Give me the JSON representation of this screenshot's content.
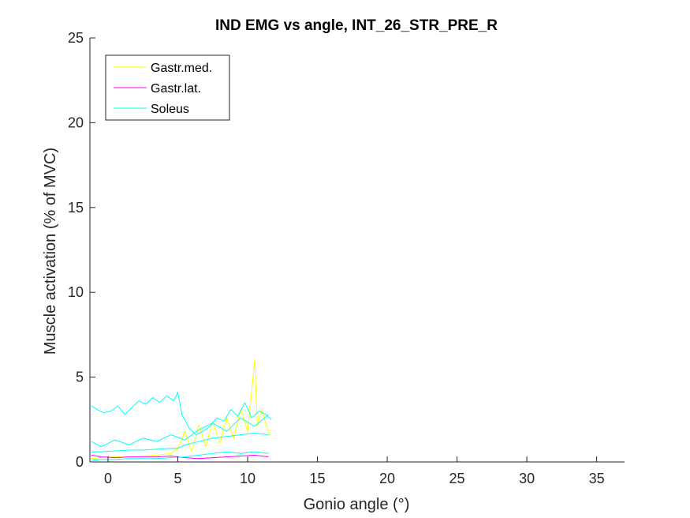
{
  "chart_data": {
    "type": "line",
    "title": "IND EMG vs angle, INT_26_STR_PRE_R",
    "xlabel": "Gonio angle (°)",
    "ylabel": "Muscle activation (% of MVC)",
    "xlim": [
      -1.3,
      37
    ],
    "ylim": [
      0,
      25
    ],
    "xticks": [
      0,
      5,
      10,
      15,
      20,
      25,
      30,
      35
    ],
    "yticks": [
      0,
      5,
      10,
      15,
      20,
      25
    ],
    "grid": false,
    "legend": {
      "placement": "top-left"
    },
    "series": [
      {
        "name": "Gastr.med.",
        "color": "#ffff00",
        "x": [
          -1.2,
          -0.5,
          0.5,
          1.5,
          2.5,
          3.5,
          4.5,
          5.0,
          5.5,
          6.0,
          6.5,
          7.0,
          7.5,
          8.0,
          8.5,
          9.0,
          9.5,
          10.0,
          10.3,
          10.5,
          10.7,
          11.0,
          11.3,
          11.6
        ],
        "y": [
          0.2,
          0.25,
          0.3,
          0.3,
          0.35,
          0.4,
          0.5,
          0.8,
          1.8,
          0.6,
          2.2,
          0.9,
          2.4,
          1.1,
          2.6,
          1.4,
          3.1,
          1.8,
          4.2,
          6.0,
          2.1,
          3.1,
          2.3,
          1.5
        ]
      },
      {
        "name": "Gastr.lat.",
        "color": "#ff00ff",
        "x": [
          -1.2,
          -0.5,
          0.5,
          1.5,
          2.5,
          3.5,
          4.5,
          5.5,
          6.5,
          7.5,
          8.5,
          9.5,
          10.5,
          11.5
        ],
        "y": [
          0.4,
          0.3,
          0.25,
          0.3,
          0.3,
          0.3,
          0.35,
          0.25,
          0.2,
          0.25,
          0.3,
          0.35,
          0.4,
          0.3
        ]
      },
      {
        "name": "Soleus",
        "color": "#00ffff",
        "x": [
          -1.2,
          -0.8,
          -0.3,
          0.2,
          0.7,
          1.2,
          1.7,
          2.2,
          2.7,
          3.2,
          3.7,
          4.2,
          4.7,
          5.0,
          5.3,
          5.8,
          6.3,
          6.8,
          7.3,
          7.8,
          8.3,
          8.8,
          9.3,
          9.8,
          10.3,
          10.8,
          11.3,
          11.7
        ],
        "y": [
          3.3,
          3.1,
          2.9,
          3.0,
          3.3,
          2.8,
          3.2,
          3.6,
          3.4,
          3.8,
          3.5,
          3.9,
          3.6,
          4.1,
          2.8,
          2.0,
          1.6,
          1.8,
          2.1,
          2.6,
          2.4,
          3.1,
          2.7,
          3.5,
          2.6,
          3.0,
          2.8,
          2.5
        ]
      },
      {
        "name": "",
        "color": "#00ffff",
        "x": [
          -1.2,
          -0.5,
          0.5,
          1.5,
          2.5,
          3.5,
          4.5,
          5.0,
          5.5,
          6.5,
          7.5,
          8.5,
          9.5,
          10.5,
          11.5
        ],
        "y": [
          0.6,
          0.6,
          0.65,
          0.7,
          0.7,
          0.75,
          0.8,
          0.8,
          1.0,
          1.2,
          1.4,
          1.5,
          1.6,
          1.7,
          1.6
        ]
      },
      {
        "name": "",
        "color": "#00ffff",
        "x": [
          -1.2,
          -0.5,
          0.5,
          1.5,
          2.5,
          3.5,
          4.5,
          5.5,
          6.5,
          7.5,
          8.5,
          9.5,
          10.5,
          11.5
        ],
        "y": [
          1.2,
          0.9,
          1.3,
          1.0,
          1.4,
          1.2,
          1.6,
          1.3,
          1.9,
          2.3,
          1.8,
          2.6,
          2.1,
          2.8
        ]
      },
      {
        "name": "",
        "color": "#00ffff",
        "x": [
          -1.2,
          -0.5,
          0.5,
          1.5,
          2.5,
          3.5,
          4.5,
          5.5,
          6.5,
          7.5,
          8.5,
          9.5,
          10.5,
          11.5
        ],
        "y": [
          0.1,
          0.15,
          0.15,
          0.2,
          0.2,
          0.2,
          0.25,
          0.3,
          0.4,
          0.5,
          0.6,
          0.5,
          0.6,
          0.5
        ]
      }
    ]
  }
}
